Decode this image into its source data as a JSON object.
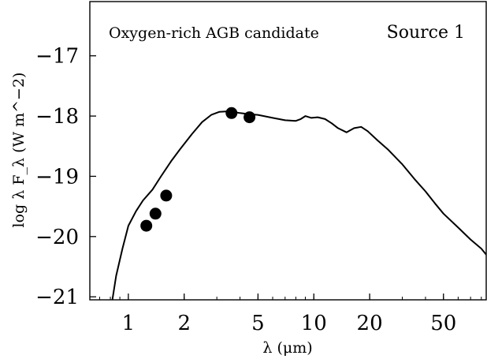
{
  "chart_data": {
    "type": "line",
    "annotation_left": "Oxygen-rich AGB candidate",
    "annotation_right": "Source 1",
    "xlabel": "λ (μm)",
    "ylabel": "log λ F_λ (W m^−2)",
    "x_scale": "log",
    "xlim": [
      0.62,
      85
    ],
    "ylim": [
      -21.05,
      -16.1
    ],
    "x_ticks": [
      1,
      2,
      5,
      10,
      20,
      50
    ],
    "x_tick_labels": [
      "1",
      "2",
      "5",
      "10",
      "20",
      "50"
    ],
    "y_ticks": [
      -17,
      -18,
      -19,
      -20,
      -21
    ],
    "y_tick_labels": [
      "−17",
      "−18",
      "−19",
      "−20",
      "−21"
    ],
    "grid": false,
    "series": [
      {
        "kind": "line",
        "color": "#000000",
        "x": [
          0.82,
          0.86,
          0.93,
          1.0,
          1.1,
          1.2,
          1.35,
          1.5,
          1.7,
          1.9,
          2.2,
          2.5,
          2.8,
          3.1,
          3.5,
          4.0,
          4.5,
          5.0,
          6.0,
          7.0,
          8.0,
          8.5,
          9.0,
          9.7,
          10.5,
          11.5,
          12.5,
          13.5,
          15.0,
          16.5,
          18.0,
          19.5,
          22.0,
          25.0,
          30.0,
          35.0,
          40.0,
          45.0,
          50.0,
          60.0,
          70.0,
          80.0,
          85.0
        ],
        "y": [
          -21.05,
          -20.65,
          -20.2,
          -19.82,
          -19.58,
          -19.4,
          -19.22,
          -19.0,
          -18.75,
          -18.55,
          -18.3,
          -18.1,
          -17.98,
          -17.93,
          -17.92,
          -17.95,
          -17.97,
          -17.98,
          -18.03,
          -18.07,
          -18.08,
          -18.05,
          -18.0,
          -18.03,
          -18.02,
          -18.05,
          -18.12,
          -18.2,
          -18.27,
          -18.2,
          -18.18,
          -18.25,
          -18.4,
          -18.55,
          -18.8,
          -19.05,
          -19.25,
          -19.45,
          -19.62,
          -19.85,
          -20.05,
          -20.2,
          -20.3
        ]
      },
      {
        "kind": "scatter",
        "color": "#000000",
        "x": [
          1.25,
          1.4,
          1.6,
          3.6,
          4.5
        ],
        "y": [
          -19.82,
          -19.62,
          -19.32,
          -17.95,
          -18.02
        ]
      }
    ]
  }
}
